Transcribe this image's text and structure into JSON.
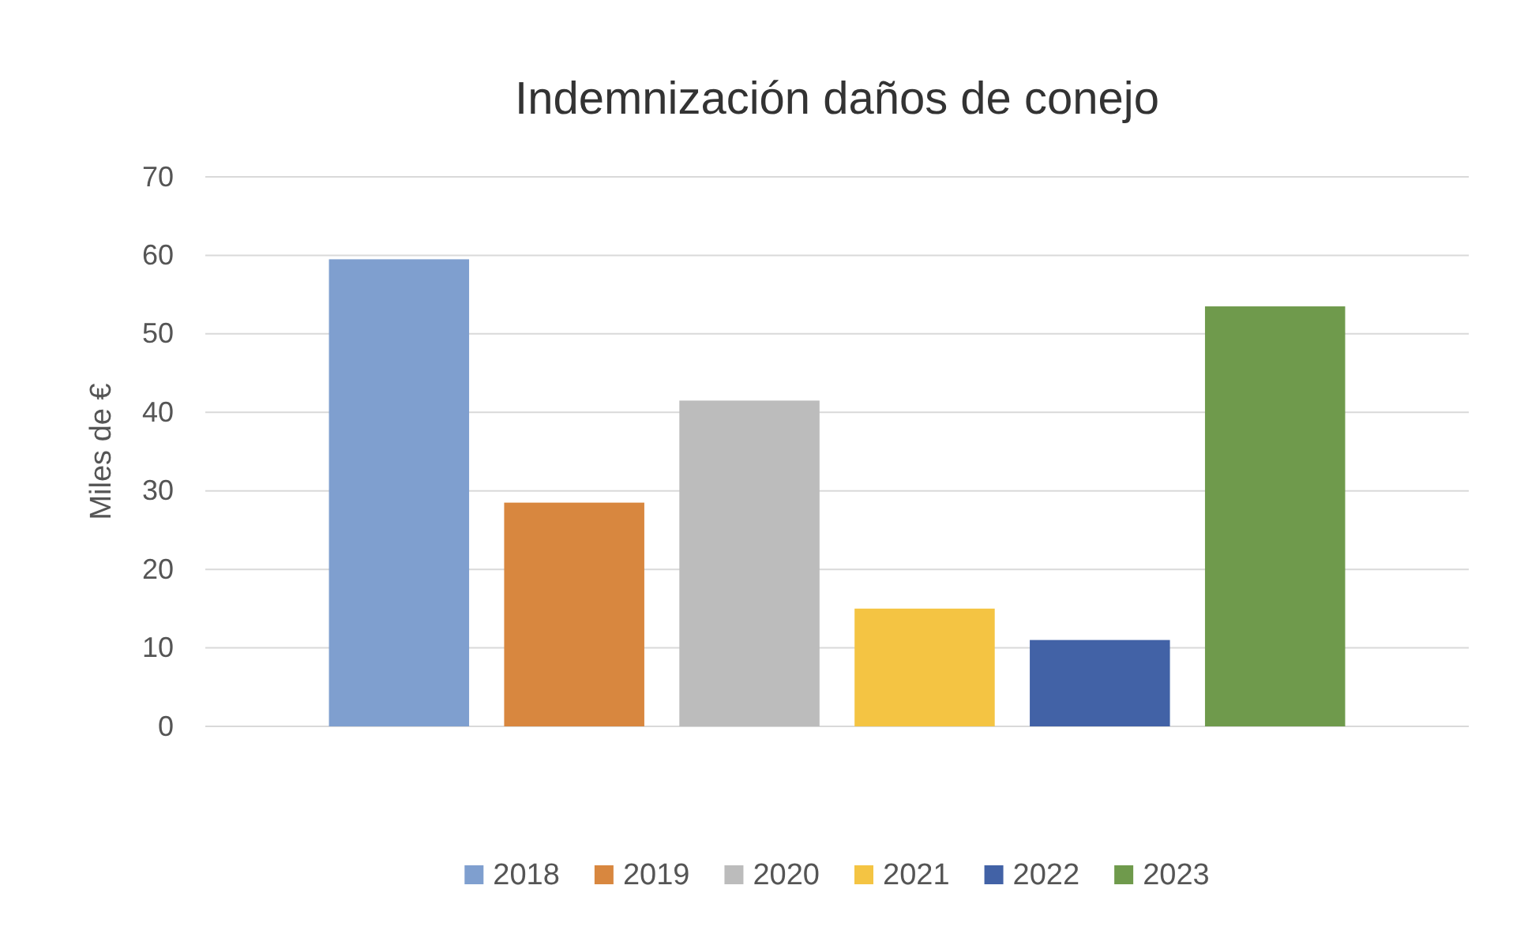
{
  "chart_data": {
    "type": "bar",
    "title": "Indemnización daños de conejo",
    "ylabel": "Miles de €",
    "categories": [
      null
    ],
    "series": [
      {
        "name": "2018",
        "color": "#7f9fcf",
        "values": [
          59.5
        ]
      },
      {
        "name": "2019",
        "color": "#d8873f",
        "values": [
          28.5
        ]
      },
      {
        "name": "2020",
        "color": "#bcbcbc",
        "values": [
          41.5
        ]
      },
      {
        "name": "2021",
        "color": "#f4c443",
        "values": [
          15
        ]
      },
      {
        "name": "2022",
        "color": "#4262a6",
        "values": [
          11
        ]
      },
      {
        "name": "2023",
        "color": "#6f9a4c",
        "values": [
          53.5
        ]
      }
    ],
    "ylim": [
      0,
      70
    ],
    "yticks": [
      0,
      10,
      20,
      30,
      40,
      50,
      60,
      70
    ],
    "grid": "y",
    "legend": "bottom"
  }
}
